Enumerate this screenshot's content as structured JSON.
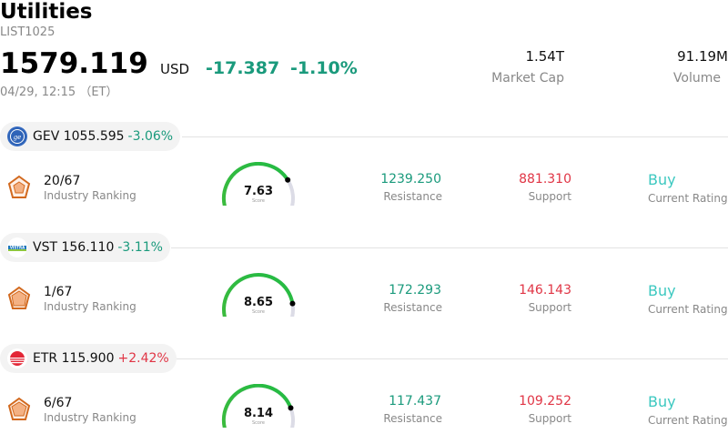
{
  "header": {
    "title": "Utilities",
    "code": "LIST1025",
    "price": "1579.119",
    "currency": "USD",
    "change": "-17.387",
    "change_pct": "-1.10%",
    "timestamp": "04/29, 12:15 （ET）",
    "market_cap_value": "1.54T",
    "market_cap_label": "Market Cap",
    "volume_value": "91.19M",
    "volume_label": "Volume"
  },
  "stocks": [
    {
      "ticker": "GEV",
      "price": "1055.595",
      "change": "-3.06%",
      "rank": "20/67",
      "rank_label": "Industry Ranking",
      "score": "7.63",
      "score_value": 7.63,
      "score_label": "Score",
      "resistance": "1239.250",
      "resistance_label": "Resistance",
      "support": "881.310",
      "support_label": "Support",
      "rating": "Buy",
      "rating_label": "Current Rating"
    },
    {
      "ticker": "VST",
      "price": "156.110",
      "change": "-3.11%",
      "rank": "1/67",
      "rank_label": "Industry Ranking",
      "score": "8.65",
      "score_value": 8.65,
      "score_label": "Score",
      "resistance": "172.293",
      "resistance_label": "Resistance",
      "support": "146.143",
      "support_label": "Support",
      "rating": "Buy",
      "rating_label": "Current Rating"
    },
    {
      "ticker": "ETR",
      "price": "115.900",
      "change": "+2.42%",
      "rank": "6/67",
      "rank_label": "Industry Ranking",
      "score": "8.14",
      "score_value": 8.14,
      "score_label": "Score",
      "resistance": "117.437",
      "resistance_label": "Resistance",
      "support": "109.252",
      "support_label": "Support",
      "rating": "Buy",
      "rating_label": "Current Rating"
    }
  ],
  "colors": {
    "up": "#1a9a7c",
    "down": "#e03545",
    "rating": "#3cc8c0",
    "gauge_track": "#dcdce6"
  },
  "icons": {
    "gev_logo": "ge-logo-icon",
    "vst_logo": "vistra-logo-icon",
    "etr_logo": "entergy-logo-icon",
    "rank": "industry-ranking-icon"
  }
}
